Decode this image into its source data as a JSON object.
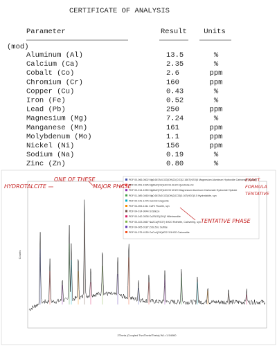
{
  "certificate": {
    "title": "CERTIFICATE OF ANALYSIS",
    "headers": [
      "Parameter",
      "Result",
      "Units"
    ],
    "group": "(mod)",
    "rows": [
      [
        "Aluminum (Al)",
        "13.5",
        "%"
      ],
      [
        "Calcium (Ca)",
        "2.35",
        "%"
      ],
      [
        "Cobalt (Co)",
        "2.6",
        "ppm"
      ],
      [
        "Chromium (Cr)",
        "160",
        "ppm"
      ],
      [
        "Copper (Cu)",
        "0.43",
        "%"
      ],
      [
        "Iron (Fe)",
        "0.52",
        "%"
      ],
      [
        "Lead (Pb)",
        "250",
        "ppm"
      ],
      [
        "Magnesium (Mg)",
        "7.24",
        "%"
      ],
      [
        "Manganese (Mn)",
        "161",
        "ppm"
      ],
      [
        "Molybdenum (Mo)",
        "1.1",
        "ppm"
      ],
      [
        "Nickel (Ni)",
        "156",
        "ppm"
      ],
      [
        "Sodium (Na)",
        "0.19",
        "%"
      ],
      [
        "Zinc (Zn)",
        "0.80",
        "%"
      ]
    ]
  },
  "pattern": {
    "y_label": "Counts",
    "x_label": "2Theta (Coupled TwoTheta/Theta) WL=1.54060",
    "legend": [
      "PDF 00-066-0602 Mg6.667Al4.333(OH)22(CO3)2.1667(H2O)6 Magnesium Aluminum Hydroxide Carbonate Hydrate",
      "PDF 00-051-1525 Mg6Al2(OH)16CO3·4H2O Quintinite-2H",
      "PDF 00-014-1050 Mg6Al2(OH)16CO3·4H2O Magnesium Aluminum Carbonate Hydroxide Hydrate",
      "PDF 01-089-0460 Mg0.667Al0.333(OH)2(CO3)0.167(H2O)0.5 Hydrotalcite, syn",
      "PDF 00-041-1475 CaCO3 Aragonite",
      "PDF 04-005-1311 CaF2 Fluorite, syn",
      "PDF 04-014-9044 Si Silicon",
      "PDF 00-042-0538 Ca2SiO3(OH)2 Hillebrandite",
      "PDF 00-023-0667 Na2Ca(P2O7)·4H2O Rotheite, Calzvering, syn",
      "PDF 04-005-0187 ZnS Zinc Sulfide",
      "PDF 04-075-4150 CaCu4(OH)8Cl2·3.5H2O Calumetite"
    ],
    "annotations": [
      "HYDROTALCITE",
      "ONE OF THESE",
      "MAJOR PHASE",
      "EXACT FORMULA TENTATIVE",
      "TENTATIVE PHASE"
    ]
  }
}
